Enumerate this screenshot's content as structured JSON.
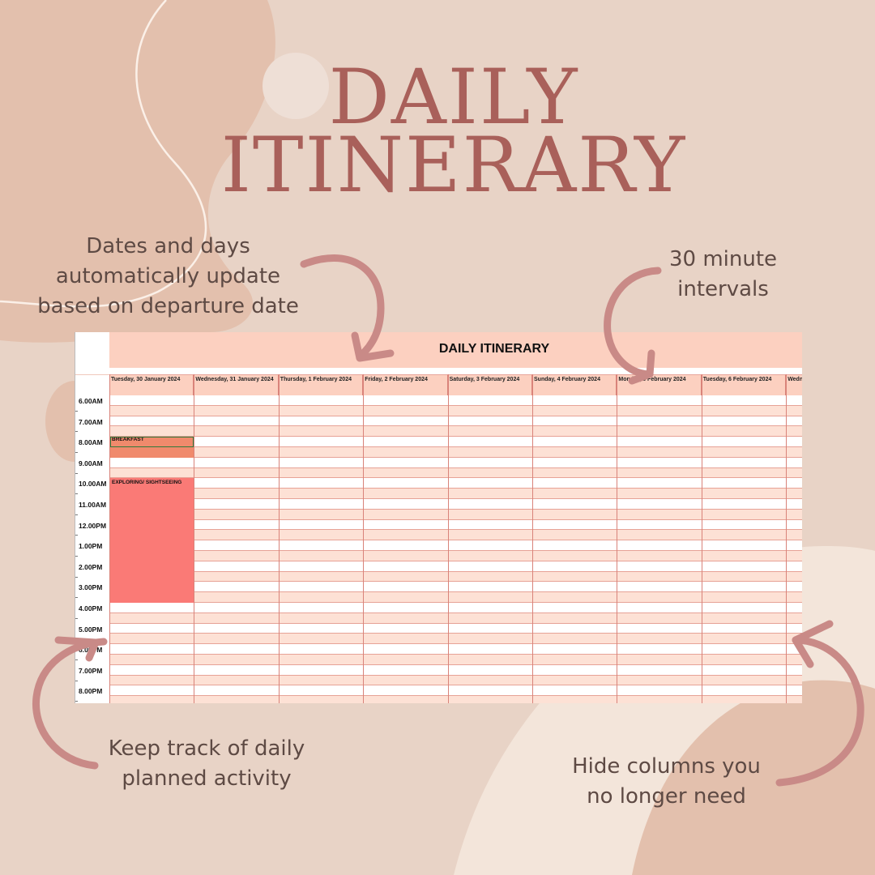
{
  "colors": {
    "background": "#e8d3c6",
    "title": "#a9605a",
    "note_text": "#5e4a44",
    "arrow": "#c98a87",
    "sheet_header": "#fcd0c0",
    "row_pink": "#fde1d5",
    "breakfast": "#f08a6c",
    "sightseeing": "#fa7a76"
  },
  "title": {
    "line1": "DAILY",
    "line2": "ITINERARY"
  },
  "notes": {
    "dates_line1": "Dates and days",
    "dates_line2": "automatically update",
    "dates_line3": "based on departure date",
    "interval_line1": "30 minute",
    "interval_line2": "intervals",
    "track_line1": "Keep track of daily",
    "track_line2": "planned activity",
    "hide_line1": "Hide columns you",
    "hide_line2": "no longer need"
  },
  "sheet": {
    "banner": "DAILY ITINERARY",
    "columns": [
      "Tuesday, 30 January 2024",
      "Wednesday, 31 January 2024",
      "Thursday, 1 February 2024",
      "Friday, 2 February 2024",
      "Saturday, 3 February 2024",
      "Sunday, 4 February 2024",
      "Monday, 5 February 2024",
      "Tuesday, 6 February 2024",
      "Wedn"
    ],
    "times": [
      "6.00AM",
      "7.00AM",
      "8.00AM",
      "9.00AM",
      "10.00AM",
      "11.00AM",
      "12.00PM",
      "1.00PM",
      "2.00PM",
      "3.00PM",
      "4.00PM",
      "5.00PM",
      "6.00PM",
      "7.00PM",
      "8.00PM"
    ],
    "activities": [
      {
        "label": "BREAKFAST",
        "start_slot": 4,
        "slots": 2,
        "color": "#f08a6c"
      },
      {
        "label": "EXPLORING/ SIGHTSEEING",
        "start_slot": 8,
        "slots": 12,
        "color": "#fa7a76"
      }
    ]
  }
}
